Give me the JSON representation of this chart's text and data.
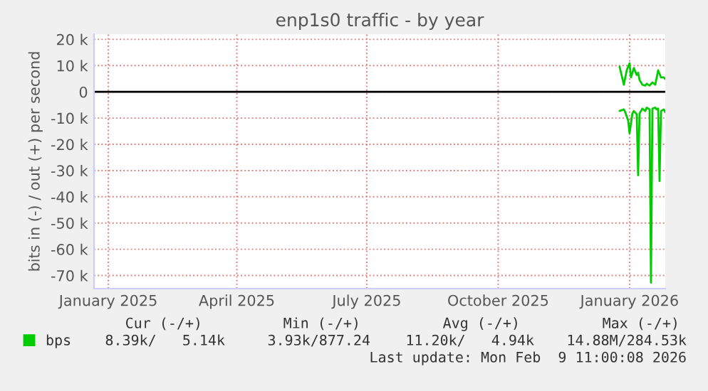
{
  "chart_data": {
    "type": "line",
    "title": "enp1s0 traffic - by year",
    "ylabel": "bits in (-) / out (+) per second",
    "xlim": [
      "2025-01-05",
      "2026-02-09"
    ],
    "xticks": [
      {
        "value": "2025-01-15",
        "label": "January 2025"
      },
      {
        "value": "2025-04-15",
        "label": "April 2025"
      },
      {
        "value": "2025-07-15",
        "label": "July 2025"
      },
      {
        "value": "2025-10-15",
        "label": "October 2025"
      },
      {
        "value": "2026-01-15",
        "label": "January 2026"
      }
    ],
    "ylim": [
      -75000,
      22000
    ],
    "yticks": [
      {
        "value": 20000,
        "label": "20 k"
      },
      {
        "value": 10000,
        "label": "10 k"
      },
      0,
      {
        "value": -10000,
        "label": "-10 k"
      },
      {
        "value": -20000,
        "label": "-20 k"
      },
      {
        "value": -30000,
        "label": "-30 k"
      },
      {
        "value": -40000,
        "label": "-40 k"
      },
      {
        "value": -50000,
        "label": "-50 k"
      },
      {
        "value": -60000,
        "label": "-60 k"
      },
      {
        "value": -70000,
        "label": "-70 k"
      }
    ],
    "series": [
      {
        "name": "bps",
        "color": "#00cc00",
        "x": [
          "2026-01-08",
          "2026-01-11",
          "2026-01-13",
          "2026-01-15",
          "2026-01-16",
          "2026-01-18",
          "2026-01-20",
          "2026-01-21",
          "2026-01-22",
          "2026-01-24",
          "2026-01-26",
          "2026-01-27",
          "2026-01-29",
          "2026-01-31",
          "2026-02-02",
          "2026-02-04",
          "2026-02-06",
          "2026-02-08",
          "2026-02-09"
        ],
        "values": [
          9600,
          2700,
          8200,
          10900,
          5500,
          9100,
          6400,
          7300,
          4500,
          2700,
          2400,
          3100,
          2400,
          3600,
          2700,
          8200,
          5500,
          5500,
          4900
        ]
      },
      {
        "color": "#00cc00",
        "x": [
          "2026-01-08",
          "2026-01-11",
          "2026-01-12",
          "2026-01-14",
          "2026-01-15",
          "2026-01-17",
          "2026-01-18",
          "2026-01-20",
          "2026-01-21",
          "2026-01-22",
          "2026-01-24",
          "2026-01-26",
          "2026-01-27",
          "2026-01-29",
          "2026-01-30",
          "2026-01-31",
          "2026-02-02",
          "2026-02-03",
          "2026-02-04",
          "2026-02-05",
          "2026-02-06",
          "2026-02-08",
          "2026-02-09"
        ],
        "values": [
          -7300,
          -6700,
          -7800,
          -10900,
          -15800,
          -8200,
          -7300,
          -8500,
          -31800,
          -8200,
          -6400,
          -7300,
          -6000,
          -6700,
          -72700,
          -6400,
          -6000,
          -6700,
          -6400,
          -34000,
          -7300,
          -6700,
          -7800
        ]
      }
    ],
    "ref_lines": [
      {
        "axis": "y",
        "value": 0,
        "color": "#000000"
      }
    ],
    "grid": true,
    "legend": "bottom left",
    "annotations": [
      "Cur (-/+)",
      "Min (-/+)",
      "Avg (-/+)",
      "Max (-/+)",
      "8.39k/   5.14k",
      "3.93k/877.24",
      "11.20k/   4.94k",
      "14.88M/284.53k",
      "Last update: Mon Feb  9 11:00:08 2026"
    ]
  }
}
